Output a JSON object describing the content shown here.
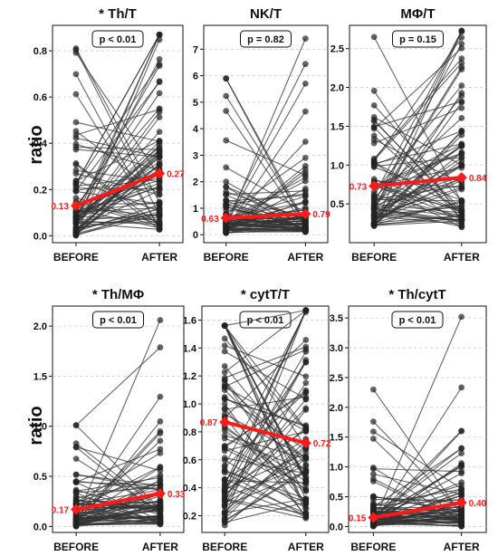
{
  "ylabel": "ratio",
  "categories": [
    "BEFORE",
    "AFTER"
  ],
  "colors": {
    "mean": "#ff1a1a",
    "lines": "#333333",
    "points": "#222222",
    "grid": "#cccccc"
  },
  "chart_data": [
    {
      "type": "line",
      "title": "* Th/T",
      "pvalue": "p < 0.01",
      "ylim": [
        -0.03,
        0.91
      ],
      "yticks": [
        "0.0",
        "0.2",
        "0.4",
        "0.6",
        "0.8"
      ],
      "ytick_values": [
        0,
        0.2,
        0.4,
        0.6,
        0.8
      ],
      "mean": {
        "before": 0.13,
        "after": 0.27,
        "before_label": "0.13",
        "after_label": "0.27"
      },
      "series_range": {
        "before": [
          0.0,
          0.81
        ],
        "after": [
          0.02,
          0.87
        ]
      },
      "n": 80
    },
    {
      "type": "line",
      "title": "NK/T",
      "pvalue": "p = 0.82",
      "ylim": [
        -0.3,
        7.9
      ],
      "yticks": [
        "0",
        "1",
        "2",
        "3",
        "4",
        "5",
        "6",
        "7"
      ],
      "ytick_values": [
        0,
        1,
        2,
        3,
        4,
        5,
        6,
        7
      ],
      "mean": {
        "before": 0.63,
        "after": 0.79,
        "before_label": "0.63",
        "after_label": "0.79"
      },
      "series_range": {
        "before": [
          0.05,
          5.9
        ],
        "after": [
          0.1,
          7.4
        ]
      },
      "n": 80
    },
    {
      "type": "line",
      "title": "MΦ/T",
      "pvalue": "p = 0.15",
      "ylim": [
        0.0,
        2.8
      ],
      "yticks": [
        "0.5",
        "1.0",
        "1.5",
        "2.0",
        "2.5"
      ],
      "ytick_values": [
        0.5,
        1.0,
        1.5,
        2.0,
        2.5
      ],
      "mean": {
        "before": 0.73,
        "after": 0.84,
        "before_label": "0.73",
        "after_label": "0.84"
      },
      "series_range": {
        "before": [
          0.2,
          2.65
        ],
        "after": [
          0.2,
          2.73
        ]
      },
      "n": 80
    },
    {
      "type": "line",
      "title": "* Th/MΦ",
      "pvalue": "p < 0.01",
      "ylim": [
        -0.06,
        2.2
      ],
      "yticks": [
        "0.0",
        "0.5",
        "1.0",
        "1.5",
        "2.0"
      ],
      "ytick_values": [
        0,
        0.5,
        1.0,
        1.5,
        2.0
      ],
      "mean": {
        "before": 0.17,
        "after": 0.33,
        "before_label": "0.17",
        "after_label": "0.33"
      },
      "series_range": {
        "before": [
          0.0,
          1.01
        ],
        "after": [
          0.02,
          2.06
        ]
      },
      "n": 80
    },
    {
      "type": "line",
      "title": "* cytT/T",
      "pvalue": "p < 0.01",
      "ylim": [
        0.08,
        1.7
      ],
      "yticks": [
        "0.2",
        "0.4",
        "0.6",
        "0.8",
        "1.0",
        "1.2",
        "1.4",
        "1.6"
      ],
      "ytick_values": [
        0.2,
        0.4,
        0.6,
        0.8,
        1.0,
        1.2,
        1.4,
        1.6
      ],
      "mean": {
        "before": 0.87,
        "after": 0.72,
        "before_label": "0.87",
        "after_label": "0.72"
      },
      "series_range": {
        "before": [
          0.12,
          1.56
        ],
        "after": [
          0.18,
          1.67
        ]
      },
      "n": 80
    },
    {
      "type": "line",
      "title": "* Th/cytT",
      "pvalue": "p < 0.01",
      "ylim": [
        -0.1,
        3.7
      ],
      "yticks": [
        "0.0",
        "0.5",
        "1.0",
        "1.5",
        "2.0",
        "2.5",
        "3.0",
        "3.5"
      ],
      "ytick_values": [
        0,
        0.5,
        1.0,
        1.5,
        2.0,
        2.5,
        3.0,
        3.5
      ],
      "mean": {
        "before": 0.15,
        "after": 0.4,
        "before_label": "0.15",
        "after_label": "0.40"
      },
      "series_range": {
        "before": [
          0.0,
          2.3
        ],
        "after": [
          0.0,
          3.52
        ]
      },
      "n": 80
    }
  ]
}
